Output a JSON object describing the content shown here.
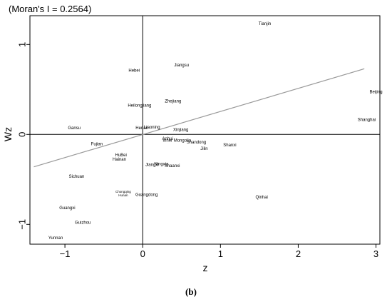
{
  "chart_data": {
    "type": "scatter",
    "title": "(Moran's I = 0.2564)",
    "xlabel": "z",
    "ylabel": "Wz",
    "caption": "(b)",
    "xlim": [
      -1.45,
      3.05
    ],
    "ylim": [
      -1.22,
      1.32
    ],
    "xticks": [
      "−1",
      "0",
      "1",
      "2",
      "3"
    ],
    "yticks": [
      "−1",
      "0",
      "1"
    ],
    "xtick_values": [
      -1,
      0,
      1,
      2,
      3
    ],
    "ytick_values": [
      -1,
      0,
      1
    ],
    "fit_line": {
      "x": [
        -1.4,
        2.85
      ],
      "y": [
        -0.36,
        0.73
      ],
      "color": "#999999"
    },
    "points": [
      {
        "label": "Tianjin",
        "x": 1.57,
        "y": 1.23
      },
      {
        "label": "Jiangsu",
        "x": 0.5,
        "y": 0.77
      },
      {
        "label": "Hebei",
        "x": -0.11,
        "y": 0.71
      },
      {
        "label": "Beijing",
        "x": 3.0,
        "y": 0.47
      },
      {
        "label": "Zhejiang",
        "x": 0.39,
        "y": 0.37
      },
      {
        "label": "Heilongjiang",
        "x": -0.04,
        "y": 0.32
      },
      {
        "label": "Shanghai",
        "x": 2.88,
        "y": 0.16
      },
      {
        "label": "Gansu",
        "x": -0.88,
        "y": 0.07
      },
      {
        "label": "Henan",
        "x": -0.01,
        "y": 0.07
      },
      {
        "label": "Liaoning",
        "x": 0.12,
        "y": 0.08
      },
      {
        "label": "Xinjiang",
        "x": 0.49,
        "y": 0.05
      },
      {
        "label": "Anhui",
        "x": 0.32,
        "y": -0.05
      },
      {
        "label": "Inner Mongolia",
        "x": 0.44,
        "y": -0.07
      },
      {
        "label": "Shandong",
        "x": 0.69,
        "y": -0.09
      },
      {
        "label": "Shanxi",
        "x": 1.12,
        "y": -0.12
      },
      {
        "label": "Jilin",
        "x": 0.79,
        "y": -0.16
      },
      {
        "label": "Fujian",
        "x": -0.59,
        "y": -0.11
      },
      {
        "label": "HuBei",
        "x": -0.28,
        "y": -0.23
      },
      {
        "label": "Hainan",
        "x": -0.3,
        "y": -0.28
      },
      {
        "label": "Jiangxi",
        "x": 0.12,
        "y": -0.34
      },
      {
        "label": "Ningxia",
        "x": 0.24,
        "y": -0.33
      },
      {
        "label": "Shaanxi",
        "x": 0.38,
        "y": -0.35
      },
      {
        "label": "Sichuan",
        "x": -0.85,
        "y": -0.47
      },
      {
        "label": "Chongqing",
        "x": -0.25,
        "y": -0.64
      },
      {
        "label": "Hunan",
        "x": -0.25,
        "y": -0.68
      },
      {
        "label": "Guangdong",
        "x": 0.05,
        "y": -0.67
      },
      {
        "label": "Qinhai",
        "x": 1.53,
        "y": -0.7
      },
      {
        "label": "Guangxi",
        "x": -0.97,
        "y": -0.82
      },
      {
        "label": "Guizhou",
        "x": -0.77,
        "y": -0.98
      },
      {
        "label": "Yunnan",
        "x": -1.12,
        "y": -1.15
      }
    ]
  }
}
